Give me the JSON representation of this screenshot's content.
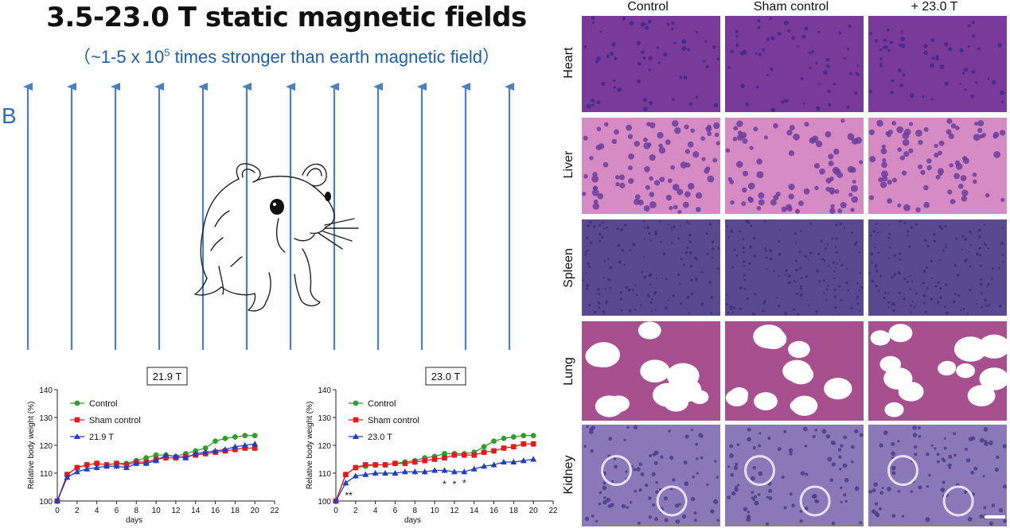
{
  "header": {
    "title": "3.5-23.0 T static magnetic fields",
    "subtitle_pre": "（~1-5 x 10",
    "subtitle_sup": "5",
    "subtitle_post": " times stronger than earth magnetic field）"
  },
  "panel_label": "B",
  "colors": {
    "control": "#2ca02c",
    "sham": "#e41a1c",
    "treated": "#1f3fbf",
    "arrow": "#4a7fc1",
    "title_blue": "#1f5fa8"
  },
  "histology": {
    "columns": [
      "Control",
      "Sham control",
      "+ 23.0 T"
    ],
    "rows": [
      "Heart",
      "Liver",
      "Spleen",
      "Lung",
      "Kidney"
    ]
  },
  "chart_data": [
    {
      "type": "line",
      "title": "21.9 T",
      "xlabel": "days",
      "ylabel": "Relative body weight (%)",
      "xlim": [
        0,
        22
      ],
      "ylim": [
        100,
        140
      ],
      "xticks": [
        "0",
        "2",
        "4",
        "6",
        "8",
        "10",
        "12",
        "14",
        "16",
        "18",
        "20",
        "22"
      ],
      "yticks": [
        "100",
        "110",
        "120",
        "130",
        "140"
      ],
      "x": [
        0,
        1,
        2,
        3,
        4,
        5,
        6,
        7,
        8,
        9,
        10,
        11,
        12,
        13,
        14,
        15,
        16,
        17,
        18,
        19,
        20
      ],
      "series": [
        {
          "name": "Control",
          "values": [
            100,
            109.5,
            112,
            113,
            113.5,
            113,
            113.5,
            113.5,
            114.5,
            115.5,
            116.5,
            116.5,
            116,
            117,
            118,
            119,
            121.5,
            122.5,
            123,
            123.5,
            123.5
          ]
        },
        {
          "name": "Sham control",
          "values": [
            100,
            109.5,
            112,
            113,
            113.5,
            113,
            113.5,
            113,
            114,
            114,
            115,
            115.5,
            115.5,
            116,
            116.5,
            117,
            117.5,
            118,
            118.5,
            119,
            119
          ]
        },
        {
          "name": "21.9 T",
          "values": [
            100,
            108.5,
            110.5,
            111.5,
            112,
            112.5,
            112.5,
            112,
            113.5,
            113.5,
            114.5,
            116.5,
            116,
            115.5,
            117,
            117.5,
            118,
            118.5,
            119.5,
            120,
            120.5
          ]
        }
      ],
      "annotations": []
    },
    {
      "type": "line",
      "title": "23.0 T",
      "xlabel": "days",
      "ylabel": "Relative body weight (%)",
      "xlim": [
        0,
        22
      ],
      "ylim": [
        100,
        140
      ],
      "xticks": [
        "0",
        "2",
        "4",
        "6",
        "8",
        "10",
        "12",
        "14",
        "16",
        "18",
        "20",
        "22"
      ],
      "yticks": [
        "100",
        "110",
        "120",
        "130",
        "140"
      ],
      "x": [
        0,
        1,
        2,
        3,
        4,
        5,
        6,
        7,
        8,
        9,
        10,
        11,
        12,
        13,
        14,
        15,
        16,
        17,
        18,
        19,
        20
      ],
      "series": [
        {
          "name": "Control",
          "values": [
            100,
            109.5,
            112,
            112.5,
            113,
            113,
            113.5,
            114,
            114.5,
            115.5,
            116,
            117,
            117,
            117,
            117.5,
            119.5,
            121.5,
            122.5,
            123,
            123.5,
            123.5
          ]
        },
        {
          "name": "Sham control",
          "values": [
            100,
            109.5,
            112,
            113,
            113,
            113,
            113.5,
            113.5,
            114,
            114.5,
            115,
            115.5,
            116.5,
            116.5,
            116.5,
            117.5,
            118,
            119,
            119.5,
            120.5,
            120.5
          ]
        },
        {
          "name": "23.0 T",
          "values": [
            100,
            106.5,
            109,
            109.5,
            110,
            110,
            110,
            110.5,
            110.5,
            110.5,
            111,
            111,
            110.5,
            110.5,
            111.5,
            112.5,
            113,
            114,
            114,
            114.5,
            115
          ]
        }
      ],
      "annotations": [
        {
          "x": 1.3,
          "y": 102,
          "text": "**"
        },
        {
          "x": 11,
          "y": 106,
          "text": "*"
        },
        {
          "x": 12,
          "y": 106,
          "text": "*"
        },
        {
          "x": 13,
          "y": 106.5,
          "text": "*"
        }
      ]
    }
  ]
}
